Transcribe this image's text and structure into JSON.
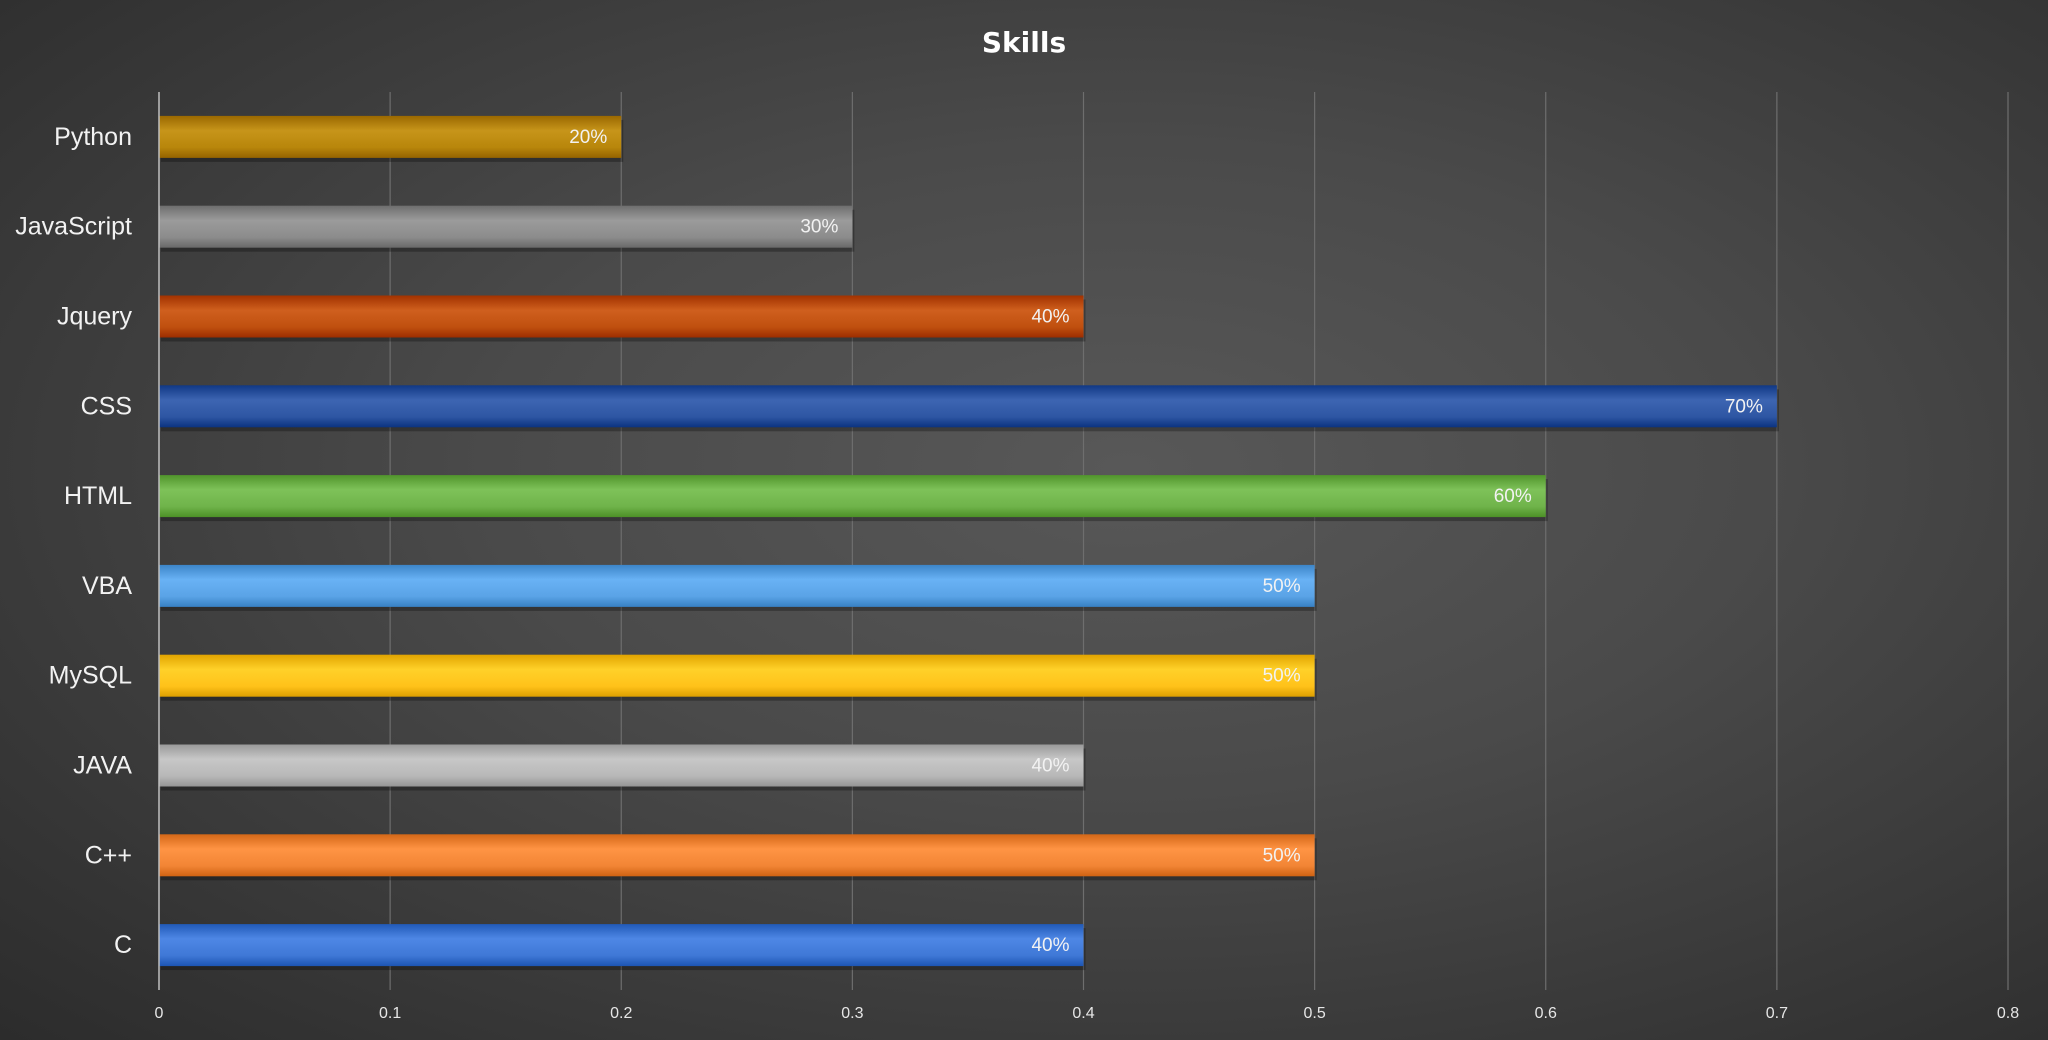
{
  "chart_data": {
    "type": "bar",
    "orientation": "horizontal",
    "title": "Skills",
    "xlabel": "",
    "ylabel": "",
    "categories": [
      "Python",
      "JavaScript",
      "Jquery",
      "CSS",
      "HTML",
      "VBA",
      "MySQL",
      "JAVA",
      "C++",
      "C"
    ],
    "values": [
      0.2,
      0.3,
      0.4,
      0.7,
      0.6,
      0.5,
      0.5,
      0.4,
      0.5,
      0.4
    ],
    "data_labels": [
      "20%",
      "30%",
      "40%",
      "70%",
      "60%",
      "50%",
      "50%",
      "40%",
      "50%",
      "40%"
    ],
    "colors": [
      "#b8860b",
      "#8c8c8c",
      "#c0500f",
      "#2e56a3",
      "#6fb34a",
      "#5aa3e6",
      "#ffc21a",
      "#b8b8b8",
      "#f28535",
      "#3f78d6"
    ],
    "xlim": [
      0,
      0.8
    ],
    "x_ticks": [
      0,
      0.1,
      0.2,
      0.3,
      0.4,
      0.5,
      0.6,
      0.7,
      0.8
    ],
    "x_tick_labels": [
      "0",
      "0.1",
      "0.2",
      "0.3",
      "0.4",
      "0.5",
      "0.6",
      "0.7",
      "0.8"
    ],
    "grid": true,
    "legend": "none"
  }
}
